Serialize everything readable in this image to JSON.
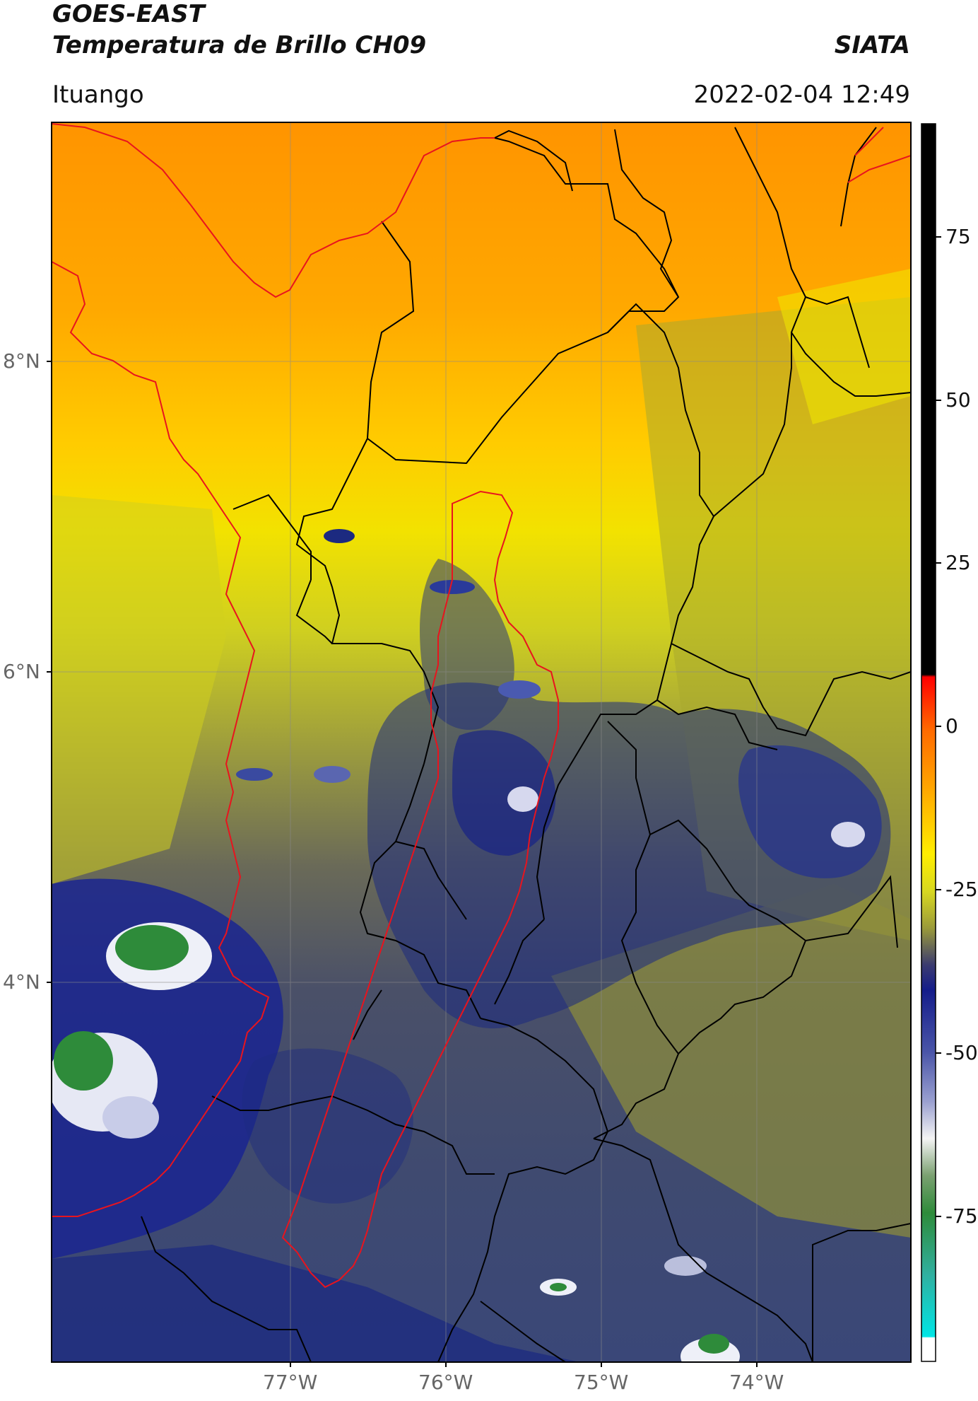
{
  "header": {
    "satellite": "GOES-EAST",
    "product": "Temperatura de Brillo CH09",
    "agency": "SIATA",
    "location": "Ituango",
    "timestamp": "2022-02-04 12:49"
  },
  "map": {
    "lat_ticks": [
      "8°N",
      "6°N",
      "4°N"
    ],
    "lon_ticks": [
      "77°W",
      "76°W",
      "75°W",
      "74°W"
    ],
    "extent": {
      "lon": [
        -78.55,
        -73.0
      ],
      "lat": [
        2.6,
        9.55
      ]
    },
    "colors": {
      "warm": "#ff9900",
      "yellow": "#f5e600",
      "olive": "#9a9a3a",
      "slate": "#4a5068",
      "navy": "#1c2a80",
      "cold_white": "#eef0f8",
      "very_cold_green": "#2e8b3a",
      "border_red": "#e8141e",
      "border_black": "#000000"
    }
  },
  "colorbar": {
    "ticks": [
      "75",
      "50",
      "25",
      "0",
      "-25",
      "-50",
      "-75"
    ]
  }
}
